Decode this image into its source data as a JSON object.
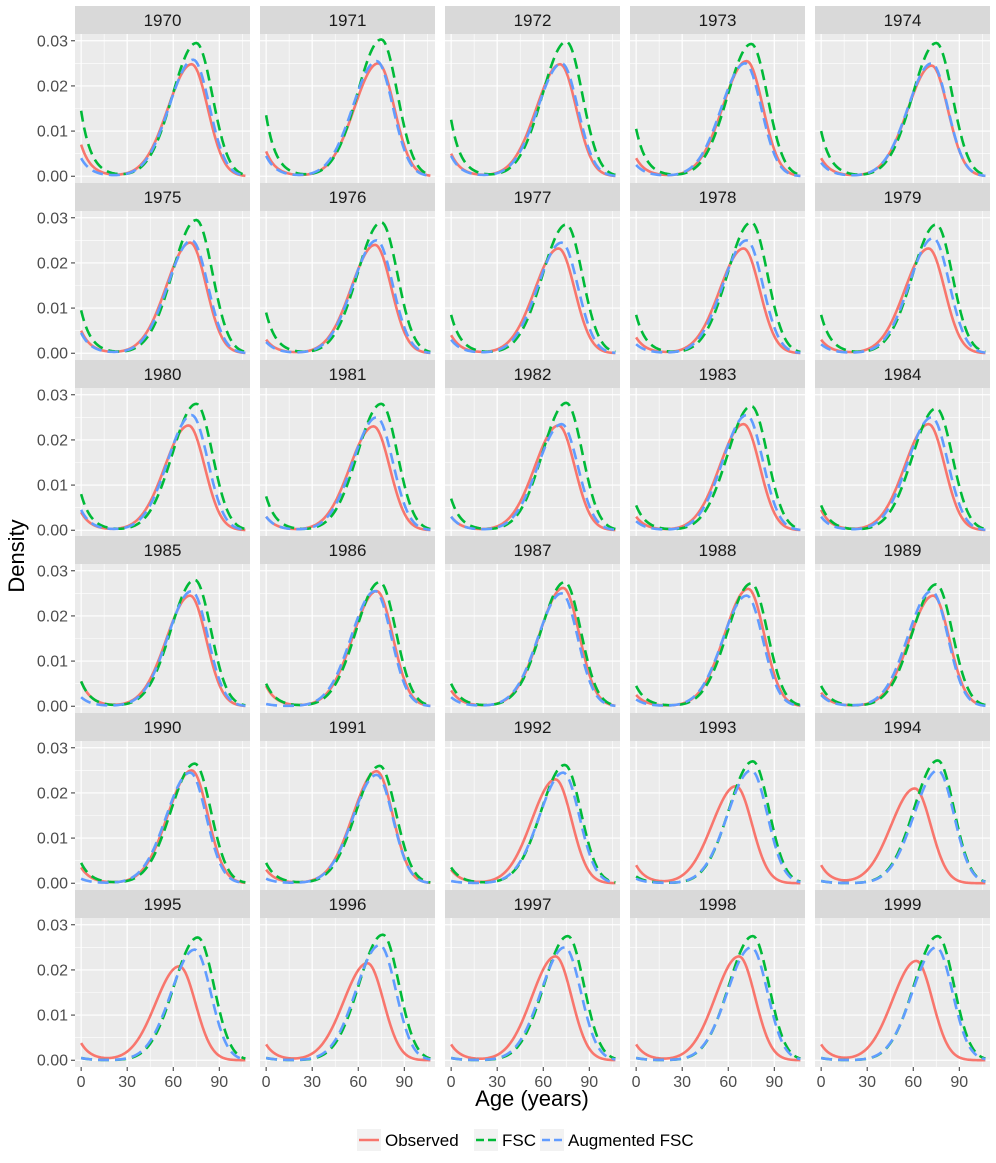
{
  "chart_data": {
    "type": "line",
    "layout": "facet grid, 6 rows x 5 columns",
    "xlabel": "Age (years)",
    "ylabel": "Density",
    "xlim": [
      -4,
      110
    ],
    "ylim": [
      -0.0015,
      0.0315
    ],
    "x_ticks": [
      0,
      30,
      60,
      90
    ],
    "y_ticks": [
      0.0,
      0.01,
      0.02,
      0.03
    ],
    "y_tick_labels": [
      "0.00",
      "0.01",
      "0.02",
      "0.03"
    ],
    "grid": true,
    "legend_position": "bottom",
    "series": [
      {
        "name": "Observed",
        "color": "#F8766D",
        "dash": "solid"
      },
      {
        "name": "FSC",
        "color": "#00BA38",
        "dash": "dashed"
      },
      {
        "name": "Augmented FSC",
        "color": "#619CFF",
        "dash": "dashed"
      }
    ],
    "panels": [
      {
        "year": "1970",
        "observed": {
          "left": 0.007,
          "peak_age": 72,
          "peak": 0.0248
        },
        "fsc": {
          "left": 0.0145,
          "peak_age": 75,
          "peak": 0.0295
        },
        "augmented": {
          "left": 0.004,
          "peak_age": 73,
          "peak": 0.0258
        }
      },
      {
        "year": "1971",
        "observed": {
          "left": 0.0055,
          "peak_age": 73,
          "peak": 0.025
        },
        "fsc": {
          "left": 0.0135,
          "peak_age": 75,
          "peak": 0.0303
        },
        "augmented": {
          "left": 0.0045,
          "peak_age": 72,
          "peak": 0.0255
        }
      },
      {
        "year": "1972",
        "observed": {
          "left": 0.005,
          "peak_age": 71,
          "peak": 0.0248
        },
        "fsc": {
          "left": 0.0125,
          "peak_age": 75,
          "peak": 0.0298
        },
        "augmented": {
          "left": 0.0045,
          "peak_age": 72,
          "peak": 0.025
        }
      },
      {
        "year": "1973",
        "observed": {
          "left": 0.004,
          "peak_age": 72,
          "peak": 0.0255
        },
        "fsc": {
          "left": 0.0105,
          "peak_age": 75,
          "peak": 0.0293
        },
        "augmented": {
          "left": 0.0025,
          "peak_age": 71,
          "peak": 0.025
        }
      },
      {
        "year": "1974",
        "observed": {
          "left": 0.004,
          "peak_age": 72,
          "peak": 0.0245
        },
        "fsc": {
          "left": 0.01,
          "peak_age": 75,
          "peak": 0.0295
        },
        "augmented": {
          "left": 0.003,
          "peak_age": 72,
          "peak": 0.025
        }
      },
      {
        "year": "1975",
        "observed": {
          "left": 0.005,
          "peak_age": 71,
          "peak": 0.0245
        },
        "fsc": {
          "left": 0.0095,
          "peak_age": 75,
          "peak": 0.0295
        },
        "augmented": {
          "left": 0.0045,
          "peak_age": 72,
          "peak": 0.025
        }
      },
      {
        "year": "1976",
        "observed": {
          "left": 0.003,
          "peak_age": 71,
          "peak": 0.024
        },
        "fsc": {
          "left": 0.009,
          "peak_age": 75,
          "peak": 0.029
        },
        "augmented": {
          "left": 0.0025,
          "peak_age": 72,
          "peak": 0.025
        }
      },
      {
        "year": "1977",
        "observed": {
          "left": 0.004,
          "peak_age": 70,
          "peak": 0.0232
        },
        "fsc": {
          "left": 0.0085,
          "peak_age": 75,
          "peak": 0.0285
        },
        "augmented": {
          "left": 0.003,
          "peak_age": 72,
          "peak": 0.0245
        }
      },
      {
        "year": "1978",
        "observed": {
          "left": 0.0035,
          "peak_age": 70,
          "peak": 0.0232
        },
        "fsc": {
          "left": 0.0085,
          "peak_age": 75,
          "peak": 0.029
        },
        "augmented": {
          "left": 0.002,
          "peak_age": 72,
          "peak": 0.025
        }
      },
      {
        "year": "1979",
        "observed": {
          "left": 0.003,
          "peak_age": 70,
          "peak": 0.0232
        },
        "fsc": {
          "left": 0.0085,
          "peak_age": 75,
          "peak": 0.0285
        },
        "augmented": {
          "left": 0.002,
          "peak_age": 73,
          "peak": 0.0255
        }
      },
      {
        "year": "1980",
        "observed": {
          "left": 0.004,
          "peak_age": 70,
          "peak": 0.0232
        },
        "fsc": {
          "left": 0.008,
          "peak_age": 75,
          "peak": 0.028
        },
        "augmented": {
          "left": 0.0045,
          "peak_age": 72,
          "peak": 0.0255
        }
      },
      {
        "year": "1981",
        "observed": {
          "left": 0.003,
          "peak_age": 70,
          "peak": 0.023
        },
        "fsc": {
          "left": 0.0075,
          "peak_age": 75,
          "peak": 0.028
        },
        "augmented": {
          "left": 0.003,
          "peak_age": 72,
          "peak": 0.025
        }
      },
      {
        "year": "1982",
        "observed": {
          "left": 0.003,
          "peak_age": 70,
          "peak": 0.0232
        },
        "fsc": {
          "left": 0.007,
          "peak_age": 75,
          "peak": 0.0282
        },
        "augmented": {
          "left": 0.003,
          "peak_age": 72,
          "peak": 0.0235
        }
      },
      {
        "year": "1983",
        "observed": {
          "left": 0.003,
          "peak_age": 70,
          "peak": 0.0235
        },
        "fsc": {
          "left": 0.0055,
          "peak_age": 75,
          "peak": 0.0275
        },
        "augmented": {
          "left": 0.002,
          "peak_age": 72,
          "peak": 0.0255
        }
      },
      {
        "year": "1984",
        "observed": {
          "left": 0.0045,
          "peak_age": 70,
          "peak": 0.0235
        },
        "fsc": {
          "left": 0.0055,
          "peak_age": 75,
          "peak": 0.027
        },
        "augmented": {
          "left": 0.003,
          "peak_age": 72,
          "peak": 0.025
        }
      },
      {
        "year": "1985",
        "observed": {
          "left": 0.0055,
          "peak_age": 71,
          "peak": 0.0245
        },
        "fsc": {
          "left": 0.0055,
          "peak_age": 74,
          "peak": 0.028
        },
        "augmented": {
          "left": 0.002,
          "peak_age": 72,
          "peak": 0.0255
        }
      },
      {
        "year": "1986",
        "observed": {
          "left": 0.0045,
          "peak_age": 72,
          "peak": 0.0255
        },
        "fsc": {
          "left": 0.005,
          "peak_age": 74,
          "peak": 0.0275
        },
        "augmented": {
          "left": 0.0005,
          "peak_age": 71,
          "peak": 0.0255
        }
      },
      {
        "year": "1987",
        "observed": {
          "left": 0.0035,
          "peak_age": 73,
          "peak": 0.0262
        },
        "fsc": {
          "left": 0.005,
          "peak_age": 74,
          "peak": 0.0275
        },
        "augmented": {
          "left": 0.002,
          "peak_age": 72,
          "peak": 0.025
        }
      },
      {
        "year": "1988",
        "observed": {
          "left": 0.0025,
          "peak_age": 73,
          "peak": 0.026
        },
        "fsc": {
          "left": 0.0045,
          "peak_age": 75,
          "peak": 0.0272
        },
        "augmented": {
          "left": 0.0015,
          "peak_age": 72,
          "peak": 0.0245
        }
      },
      {
        "year": "1989",
        "observed": {
          "left": 0.003,
          "peak_age": 73,
          "peak": 0.0245
        },
        "fsc": {
          "left": 0.0045,
          "peak_age": 75,
          "peak": 0.027
        },
        "augmented": {
          "left": 0.0025,
          "peak_age": 72,
          "peak": 0.0255
        }
      },
      {
        "year": "1990",
        "observed": {
          "left": 0.0035,
          "peak_age": 72,
          "peak": 0.025
        },
        "fsc": {
          "left": 0.0045,
          "peak_age": 74,
          "peak": 0.0265
        },
        "augmented": {
          "left": 0.001,
          "peak_age": 71,
          "peak": 0.0245
        }
      },
      {
        "year": "1991",
        "observed": {
          "left": 0.003,
          "peak_age": 72,
          "peak": 0.0248
        },
        "fsc": {
          "left": 0.0045,
          "peak_age": 74,
          "peak": 0.026
        },
        "augmented": {
          "left": 0.001,
          "peak_age": 72,
          "peak": 0.024
        }
      },
      {
        "year": "1992",
        "observed": {
          "left": 0.003,
          "peak_age": 68,
          "peak": 0.023
        },
        "fsc": {
          "left": 0.0035,
          "peak_age": 74,
          "peak": 0.0262
        },
        "augmented": {
          "left": 0.0005,
          "peak_age": 73,
          "peak": 0.0245
        }
      },
      {
        "year": "1993",
        "observed": {
          "left": 0.004,
          "peak_age": 65,
          "peak": 0.0215
        },
        "fsc": {
          "left": 0.0015,
          "peak_age": 76,
          "peak": 0.027
        },
        "augmented": {
          "left": 0.001,
          "peak_age": 75,
          "peak": 0.025
        }
      },
      {
        "year": "1994",
        "observed": {
          "left": 0.004,
          "peak_age": 61,
          "peak": 0.021
        },
        "fsc": {
          "left": 0.0005,
          "peak_age": 76,
          "peak": 0.0272
        },
        "augmented": {
          "left": 0.0005,
          "peak_age": 76,
          "peak": 0.025
        }
      },
      {
        "year": "1995",
        "observed": {
          "left": 0.0038,
          "peak_age": 64,
          "peak": 0.0208
        },
        "fsc": {
          "left": 0.0005,
          "peak_age": 76,
          "peak": 0.0272
        },
        "augmented": {
          "left": 0.0005,
          "peak_age": 74,
          "peak": 0.0245
        }
      },
      {
        "year": "1996",
        "observed": {
          "left": 0.0035,
          "peak_age": 66,
          "peak": 0.0215
        },
        "fsc": {
          "left": 0.0005,
          "peak_age": 76,
          "peak": 0.0278
        },
        "augmented": {
          "left": 0.0005,
          "peak_age": 74,
          "peak": 0.0255
        }
      },
      {
        "year": "1997",
        "observed": {
          "left": 0.0035,
          "peak_age": 68,
          "peak": 0.023
        },
        "fsc": {
          "left": 0.0005,
          "peak_age": 76,
          "peak": 0.0275
        },
        "augmented": {
          "left": 0.0005,
          "peak_age": 74,
          "peak": 0.025
        }
      },
      {
        "year": "1998",
        "observed": {
          "left": 0.0035,
          "peak_age": 67,
          "peak": 0.023
        },
        "fsc": {
          "left": 0.0005,
          "peak_age": 76,
          "peak": 0.0275
        },
        "augmented": {
          "left": 0.0005,
          "peak_age": 75,
          "peak": 0.025
        }
      },
      {
        "year": "1999",
        "observed": {
          "left": 0.0035,
          "peak_age": 62,
          "peak": 0.022
        },
        "fsc": {
          "left": 0.0005,
          "peak_age": 76,
          "peak": 0.0275
        },
        "augmented": {
          "left": 0.0005,
          "peak_age": 75,
          "peak": 0.025
        }
      }
    ]
  }
}
